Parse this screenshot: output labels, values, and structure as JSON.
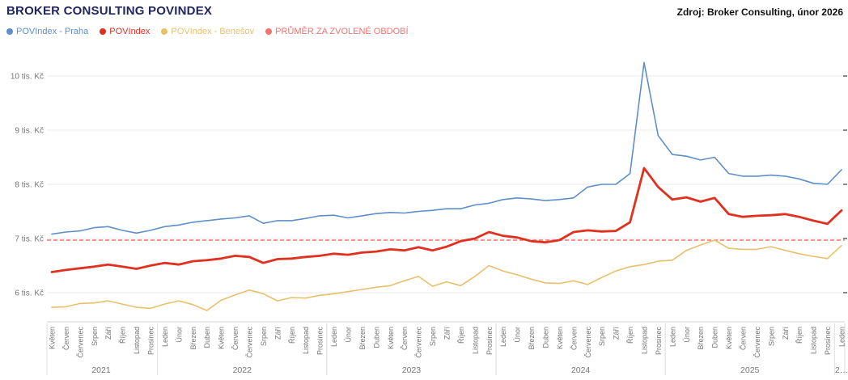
{
  "header": {
    "title": "BROKER CONSULTING POVINDEX",
    "source": "Zdroj: Broker Consulting, únor 2026"
  },
  "legend": [
    {
      "label": "POVIndex - Praha",
      "color": "#5E8FC9"
    },
    {
      "label": "POVIndex",
      "color": "#E0301E"
    },
    {
      "label": "POVIndex - Benešov",
      "color": "#E8C06A"
    },
    {
      "label": "PRŮMĚR ZA ZVOLENÉ OBDOBÍ",
      "color": "#F2736F"
    }
  ],
  "chart_data": {
    "type": "line",
    "title": "BROKER CONSULTING POVINDEX",
    "ylabel_ticks": [
      "6 tis. Kč",
      "7 tis. Kč",
      "8 tis. Kč",
      "9 tis. Kč",
      "10 tis. Kč"
    ],
    "ylim": [
      5.5,
      10.5
    ],
    "grid": true,
    "legend_position": "top",
    "x_months": [
      "Květen",
      "Červen",
      "Červenec",
      "Srpen",
      "Září",
      "Říjen",
      "Listopad",
      "Prosinec",
      "Leden",
      "Únor",
      "Březen",
      "Duben",
      "Květen",
      "Červen",
      "Červenec",
      "Srpen",
      "Září",
      "Říjen",
      "Listopad",
      "Prosinec",
      "Leden",
      "Únor",
      "Březen",
      "Duben",
      "Květen",
      "Červen",
      "Červenec",
      "Srpen",
      "Září",
      "Říjen",
      "Listopad",
      "Prosinec",
      "Leden",
      "Únor",
      "Březen",
      "Duben",
      "Květen",
      "Červen",
      "Červenec",
      "Srpen",
      "Září",
      "Říjen",
      "Listopad",
      "Prosinec",
      "Leden",
      "Únor",
      "Březen",
      "Duben",
      "Květen",
      "Červen",
      "Červenec",
      "Srpen",
      "Září",
      "Říjen",
      "Listopad",
      "Prosinec",
      "Leden"
    ],
    "year_groups": [
      {
        "label": "2021",
        "count": 8
      },
      {
        "label": "2022",
        "count": 12
      },
      {
        "label": "2023",
        "count": 12
      },
      {
        "label": "2024",
        "count": 12
      },
      {
        "label": "2025",
        "count": 12
      },
      {
        "label": "2…",
        "count": 1
      }
    ],
    "series": [
      {
        "name": "POVIndex - Praha",
        "color": "#5E8FC9",
        "width": 1.6,
        "values": [
          7.08,
          7.12,
          7.14,
          7.2,
          7.22,
          7.15,
          7.1,
          7.15,
          7.22,
          7.25,
          7.3,
          7.33,
          7.36,
          7.38,
          7.42,
          7.28,
          7.33,
          7.33,
          7.37,
          7.42,
          7.43,
          7.38,
          7.42,
          7.46,
          7.48,
          7.47,
          7.5,
          7.52,
          7.55,
          7.55,
          7.62,
          7.65,
          7.72,
          7.75,
          7.73,
          7.7,
          7.72,
          7.75,
          7.95,
          8.0,
          8.0,
          8.2,
          10.25,
          8.9,
          8.55,
          8.52,
          8.45,
          8.5,
          8.2,
          8.15,
          8.15,
          8.17,
          8.15,
          8.1,
          8.02,
          8.0,
          8.27
        ]
      },
      {
        "name": "POVIndex",
        "color": "#E0301E",
        "width": 2.8,
        "values": [
          6.38,
          6.42,
          6.45,
          6.48,
          6.52,
          6.48,
          6.44,
          6.5,
          6.55,
          6.52,
          6.58,
          6.6,
          6.63,
          6.68,
          6.66,
          6.55,
          6.62,
          6.63,
          6.66,
          6.68,
          6.72,
          6.7,
          6.74,
          6.76,
          6.8,
          6.78,
          6.84,
          6.78,
          6.85,
          6.95,
          7.0,
          7.12,
          7.05,
          7.02,
          6.95,
          6.93,
          6.97,
          7.12,
          7.15,
          7.13,
          7.14,
          7.3,
          8.3,
          7.95,
          7.72,
          7.76,
          7.68,
          7.75,
          7.45,
          7.4,
          7.42,
          7.43,
          7.45,
          7.4,
          7.33,
          7.27,
          7.52
        ]
      },
      {
        "name": "POVIndex - Benešov",
        "color": "#E8C06A",
        "width": 1.6,
        "values": [
          5.73,
          5.74,
          5.8,
          5.81,
          5.85,
          5.79,
          5.73,
          5.71,
          5.79,
          5.85,
          5.78,
          5.67,
          5.86,
          5.96,
          6.05,
          5.98,
          5.85,
          5.91,
          5.9,
          5.95,
          5.98,
          6.02,
          6.06,
          6.1,
          6.13,
          6.22,
          6.3,
          6.12,
          6.2,
          6.13,
          6.3,
          6.5,
          6.4,
          6.33,
          6.25,
          6.18,
          6.17,
          6.22,
          6.15,
          6.28,
          6.4,
          6.48,
          6.52,
          6.58,
          6.6,
          6.78,
          6.88,
          6.97,
          6.82,
          6.8,
          6.8,
          6.85,
          6.78,
          6.72,
          6.67,
          6.63,
          6.87
        ]
      }
    ],
    "average_line": {
      "name": "PRŮMĚR ZA ZVOLENÉ OBDOBÍ",
      "value": 6.97,
      "color": "#F2736F",
      "style": "dashed"
    },
    "colors": {
      "title": "#21265E",
      "grid": "#E8E8E8",
      "axis_line": "#D0D0D0",
      "axis_text": "#767676"
    }
  }
}
